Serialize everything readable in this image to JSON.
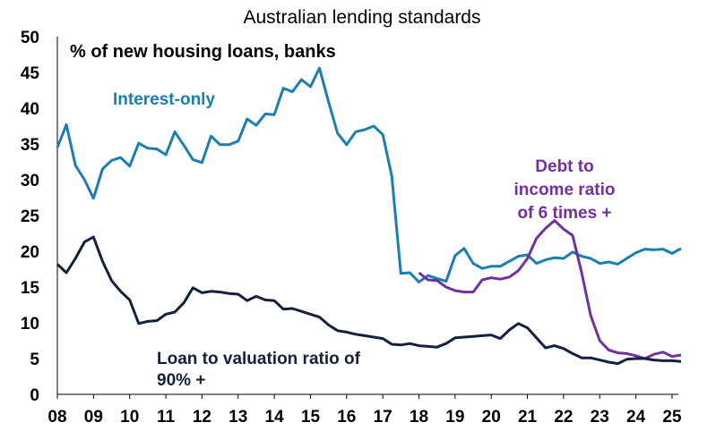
{
  "chart_data": {
    "type": "line",
    "title": "Australian lending standards",
    "subtitle": "% of new housing loans, banks",
    "ylim": [
      0,
      50
    ],
    "yticks": [
      0,
      5,
      10,
      15,
      20,
      25,
      30,
      35,
      40,
      45,
      50
    ],
    "xlim": [
      2008.0,
      2025.5
    ],
    "xticks": [
      "08",
      "09",
      "10",
      "11",
      "12",
      "13",
      "14",
      "15",
      "16",
      "17",
      "18",
      "19",
      "20",
      "21",
      "22",
      "23",
      "24",
      "25"
    ],
    "grid": false,
    "legend": "none (direct labels)",
    "series": [
      {
        "name": "Interest-only",
        "color": "#1a7fb0",
        "label_lines": [
          "Interest-only"
        ],
        "points": [
          [
            2008.0,
            34.5
          ],
          [
            2008.25,
            37.7
          ],
          [
            2008.5,
            32.0
          ],
          [
            2008.75,
            30.0
          ],
          [
            2009.0,
            27.4
          ],
          [
            2009.25,
            31.5
          ],
          [
            2009.5,
            32.7
          ],
          [
            2009.75,
            33.1
          ],
          [
            2010.0,
            31.9
          ],
          [
            2010.25,
            35.1
          ],
          [
            2010.5,
            34.4
          ],
          [
            2010.75,
            34.3
          ],
          [
            2011.0,
            33.5
          ],
          [
            2011.25,
            36.7
          ],
          [
            2011.5,
            34.8
          ],
          [
            2011.75,
            32.8
          ],
          [
            2012.0,
            32.4
          ],
          [
            2012.25,
            36.1
          ],
          [
            2012.5,
            34.9
          ],
          [
            2012.75,
            34.9
          ],
          [
            2013.0,
            35.4
          ],
          [
            2013.25,
            38.5
          ],
          [
            2013.5,
            37.6
          ],
          [
            2013.75,
            39.2
          ],
          [
            2014.0,
            39.1
          ],
          [
            2014.25,
            42.8
          ],
          [
            2014.5,
            42.3
          ],
          [
            2014.75,
            44.0
          ],
          [
            2015.0,
            43.0
          ],
          [
            2015.25,
            45.6
          ],
          [
            2015.5,
            40.9
          ],
          [
            2015.75,
            36.5
          ],
          [
            2016.0,
            34.9
          ],
          [
            2016.25,
            36.7
          ],
          [
            2016.5,
            37.0
          ],
          [
            2016.75,
            37.5
          ],
          [
            2017.0,
            36.3
          ],
          [
            2017.25,
            30.5
          ],
          [
            2017.5,
            16.9
          ],
          [
            2017.75,
            17.0
          ],
          [
            2018.0,
            15.7
          ],
          [
            2018.25,
            16.6
          ],
          [
            2018.5,
            16.2
          ],
          [
            2018.75,
            15.8
          ],
          [
            2019.0,
            19.4
          ],
          [
            2019.25,
            20.4
          ],
          [
            2019.5,
            18.3
          ],
          [
            2019.75,
            17.6
          ],
          [
            2020.0,
            17.9
          ],
          [
            2020.25,
            17.9
          ],
          [
            2020.5,
            18.6
          ],
          [
            2020.75,
            19.3
          ],
          [
            2021.0,
            19.5
          ],
          [
            2021.25,
            18.3
          ],
          [
            2021.5,
            18.8
          ],
          [
            2021.75,
            19.1
          ],
          [
            2022.0,
            19.0
          ],
          [
            2022.25,
            19.9
          ],
          [
            2022.5,
            19.3
          ],
          [
            2022.75,
            19.0
          ],
          [
            2023.0,
            18.3
          ],
          [
            2023.25,
            18.5
          ],
          [
            2023.5,
            18.2
          ],
          [
            2023.75,
            19.0
          ],
          [
            2024.0,
            19.8
          ],
          [
            2024.25,
            20.3
          ],
          [
            2024.5,
            20.2
          ],
          [
            2024.75,
            20.3
          ],
          [
            2025.0,
            19.7
          ],
          [
            2025.25,
            20.4
          ]
        ]
      },
      {
        "name": "Debt to income ratio of 6 times +",
        "color": "#7030a0",
        "label_lines": [
          "Debt to",
          "income ratio",
          "of 6 times +"
        ],
        "points": [
          [
            2018.0,
            17.0
          ],
          [
            2018.25,
            16.0
          ],
          [
            2018.5,
            15.9
          ],
          [
            2018.75,
            15.0
          ],
          [
            2019.0,
            14.5
          ],
          [
            2019.25,
            14.3
          ],
          [
            2019.5,
            14.3
          ],
          [
            2019.75,
            16.0
          ],
          [
            2020.0,
            16.3
          ],
          [
            2020.25,
            16.1
          ],
          [
            2020.5,
            16.4
          ],
          [
            2020.75,
            17.3
          ],
          [
            2021.0,
            19.0
          ],
          [
            2021.25,
            21.8
          ],
          [
            2021.5,
            23.2
          ],
          [
            2021.75,
            24.3
          ],
          [
            2022.0,
            23.1
          ],
          [
            2022.25,
            22.2
          ],
          [
            2022.5,
            17.0
          ],
          [
            2022.75,
            11.0
          ],
          [
            2023.0,
            7.5
          ],
          [
            2023.25,
            6.2
          ],
          [
            2023.5,
            5.8
          ],
          [
            2023.75,
            5.7
          ],
          [
            2024.0,
            5.4
          ],
          [
            2024.25,
            5.0
          ],
          [
            2024.5,
            5.6
          ],
          [
            2024.75,
            5.9
          ],
          [
            2025.0,
            5.3
          ],
          [
            2025.25,
            5.5
          ]
        ]
      },
      {
        "name": "Loan to valuation ratio of 90% +",
        "color": "#14213d",
        "label_lines": [
          "Loan to valuation ratio of",
          "90% +"
        ],
        "points": [
          [
            2008.0,
            18.2
          ],
          [
            2008.25,
            17.0
          ],
          [
            2008.5,
            19.0
          ],
          [
            2008.75,
            21.3
          ],
          [
            2009.0,
            22.0
          ],
          [
            2009.25,
            18.6
          ],
          [
            2009.5,
            15.9
          ],
          [
            2009.75,
            14.4
          ],
          [
            2010.0,
            13.2
          ],
          [
            2010.25,
            9.9
          ],
          [
            2010.5,
            10.2
          ],
          [
            2010.75,
            10.3
          ],
          [
            2011.0,
            11.2
          ],
          [
            2011.25,
            11.5
          ],
          [
            2011.5,
            12.8
          ],
          [
            2011.75,
            14.9
          ],
          [
            2012.0,
            14.2
          ],
          [
            2012.25,
            14.4
          ],
          [
            2012.5,
            14.3
          ],
          [
            2012.75,
            14.1
          ],
          [
            2013.0,
            14.0
          ],
          [
            2013.25,
            13.1
          ],
          [
            2013.5,
            13.7
          ],
          [
            2013.75,
            13.2
          ],
          [
            2014.0,
            13.1
          ],
          [
            2014.25,
            11.9
          ],
          [
            2014.5,
            12.0
          ],
          [
            2014.75,
            11.6
          ],
          [
            2015.0,
            11.2
          ],
          [
            2015.25,
            10.8
          ],
          [
            2015.5,
            9.7
          ],
          [
            2015.75,
            8.9
          ],
          [
            2016.0,
            8.7
          ],
          [
            2016.25,
            8.4
          ],
          [
            2016.5,
            8.2
          ],
          [
            2016.75,
            8.0
          ],
          [
            2017.0,
            7.8
          ],
          [
            2017.25,
            7.0
          ],
          [
            2017.5,
            6.9
          ],
          [
            2017.75,
            7.1
          ],
          [
            2018.0,
            6.8
          ],
          [
            2018.25,
            6.7
          ],
          [
            2018.5,
            6.6
          ],
          [
            2018.75,
            7.1
          ],
          [
            2019.0,
            7.9
          ],
          [
            2019.25,
            8.0
          ],
          [
            2019.5,
            8.1
          ],
          [
            2019.75,
            8.2
          ],
          [
            2020.0,
            8.3
          ],
          [
            2020.25,
            7.8
          ],
          [
            2020.5,
            9.0
          ],
          [
            2020.75,
            9.9
          ],
          [
            2021.0,
            9.3
          ],
          [
            2021.25,
            7.9
          ],
          [
            2021.5,
            6.5
          ],
          [
            2021.75,
            6.8
          ],
          [
            2022.0,
            6.4
          ],
          [
            2022.25,
            5.7
          ],
          [
            2022.5,
            5.1
          ],
          [
            2022.75,
            5.1
          ],
          [
            2023.0,
            4.8
          ],
          [
            2023.25,
            4.5
          ],
          [
            2023.5,
            4.3
          ],
          [
            2023.75,
            4.9
          ],
          [
            2024.0,
            5.0
          ],
          [
            2024.25,
            5.0
          ],
          [
            2024.5,
            4.8
          ],
          [
            2024.75,
            4.7
          ],
          [
            2025.0,
            4.7
          ],
          [
            2025.25,
            4.6
          ]
        ]
      }
    ]
  }
}
